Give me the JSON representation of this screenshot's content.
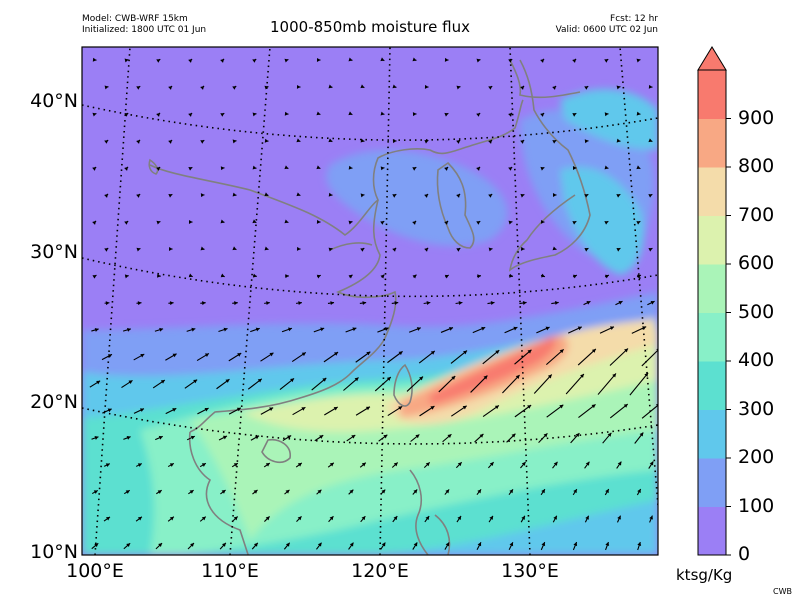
{
  "header": {
    "model": "Model: CWB-WRF 15km",
    "initialized": "Initialized: 1800 UTC 01 Jun",
    "fcst": "Fcst: 12 hr",
    "valid": "Valid: 0600 UTC 02 Jun"
  },
  "title": "1000-850mb moisture flux",
  "latitude_labels": [
    "40°N",
    "30°N",
    "20°N",
    "10°N"
  ],
  "longitude_labels": [
    "100°E",
    "110°E",
    "120°E",
    "130°E"
  ],
  "colorbar": {
    "levels": [
      0,
      100,
      200,
      300,
      400,
      500,
      600,
      700,
      800,
      900
    ],
    "tick_labels": [
      "0",
      "100",
      "200",
      "300",
      "400",
      "500",
      "600",
      "700",
      "800",
      "900"
    ],
    "colors": [
      "#9b7ff5",
      "#7f9ff5",
      "#60c8ec",
      "#5ce0d0",
      "#88f0c8",
      "#aaf4b8",
      "#dcf2ae",
      "#f4dcaa",
      "#f8a884",
      "#f87a6e"
    ],
    "extend": "max",
    "unit": "ktsg/Kg"
  },
  "map_colors": {
    "coastline": "#808080",
    "gridline": "#000000",
    "arrow": "#000000"
  },
  "credit": "CWB"
}
